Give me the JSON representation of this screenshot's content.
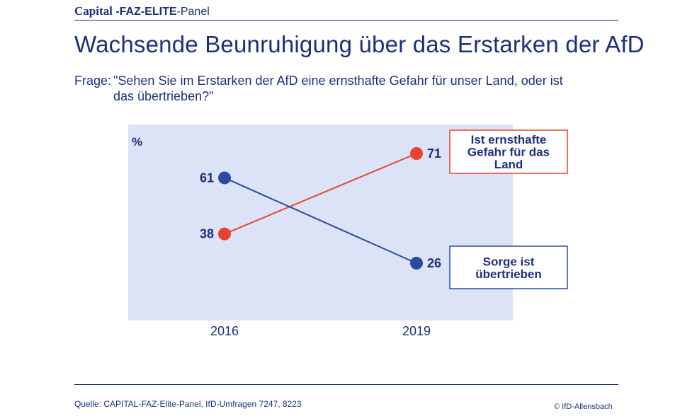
{
  "header": {
    "capital": "Capital",
    "dash1": "-",
    "faz_elite": "FAZ-ELITE",
    "dash2": "-",
    "panel": "Panel"
  },
  "title": "Wachsende Beunruhigung über das Erstarken der AfD",
  "question": {
    "label": "Frage:",
    "text": "\"Sehen Sie im Erstarken der AfD eine ernsthafte Gefahr für unser Land, oder ist das übertrieben?\""
  },
  "colors": {
    "red": "#e8432f",
    "blue": "#2c4aa0",
    "plot_bg": "#dce3f6",
    "text": "#1f2f7a"
  },
  "chart_data": {
    "type": "line",
    "unit_label": "%",
    "categories": [
      "2016",
      "2019"
    ],
    "ylim": [
      20,
      80
    ],
    "series": [
      {
        "name": "Ist ernsthafte Gefahr für das Land",
        "legend_lines": [
          "Ist ernsthafte",
          "Gefahr für das",
          "Land"
        ],
        "color": "#e8432f",
        "values": [
          38,
          71
        ]
      },
      {
        "name": "Sorge ist übertrieben",
        "legend_lines": [
          "Sorge ist",
          "übertrieben"
        ],
        "color": "#2c4aa0",
        "values": [
          61,
          26
        ]
      }
    ]
  },
  "footer": {
    "source": "Quelle: CAPITAL-FAZ-Elite-Panel, IfD-Umfragen 7247, 8223",
    "copyright": "© IfD-Allensbach"
  }
}
